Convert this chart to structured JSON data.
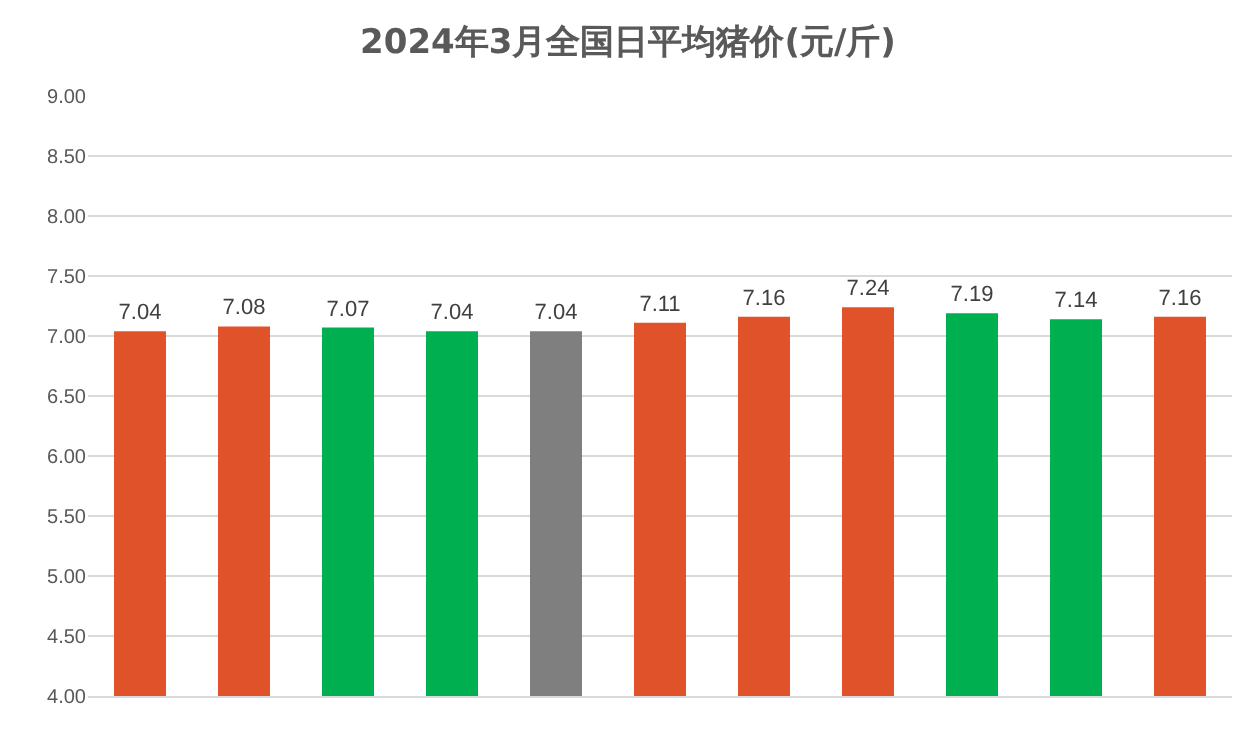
{
  "chart_data": {
    "type": "bar",
    "title": "2024年3月全国日平均猪价(元/斤)",
    "categories": [
      null,
      null,
      null,
      null,
      null,
      null,
      null,
      null,
      null,
      null,
      null
    ],
    "values": [
      7.04,
      7.08,
      7.07,
      7.04,
      7.04,
      7.11,
      7.16,
      7.24,
      7.19,
      7.14,
      7.16
    ],
    "colors": [
      "#e0522a",
      "#e0522a",
      "#00b050",
      "#00b050",
      "#7f7f7f",
      "#e0522a",
      "#e0522a",
      "#e0522a",
      "#00b050",
      "#00b050",
      "#e0522a"
    ],
    "ylim": [
      4,
      9
    ],
    "yticks": [
      {
        "value": 4,
        "label": "4.00"
      },
      {
        "value": 4.5,
        "label": "4.50"
      },
      {
        "value": 5,
        "label": "5.00"
      },
      {
        "value": 5.5,
        "label": "5.50"
      },
      {
        "value": 6,
        "label": "6.00"
      },
      {
        "value": 6.5,
        "label": "6.50"
      },
      {
        "value": 7,
        "label": "7.00"
      },
      {
        "value": 7.5,
        "label": "7.50"
      },
      {
        "value": 8,
        "label": "8.00"
      },
      {
        "value": 8.5,
        "label": "8.50"
      },
      {
        "value": 9,
        "label": "9.00"
      }
    ],
    "grid": true,
    "data_labels": true
  }
}
